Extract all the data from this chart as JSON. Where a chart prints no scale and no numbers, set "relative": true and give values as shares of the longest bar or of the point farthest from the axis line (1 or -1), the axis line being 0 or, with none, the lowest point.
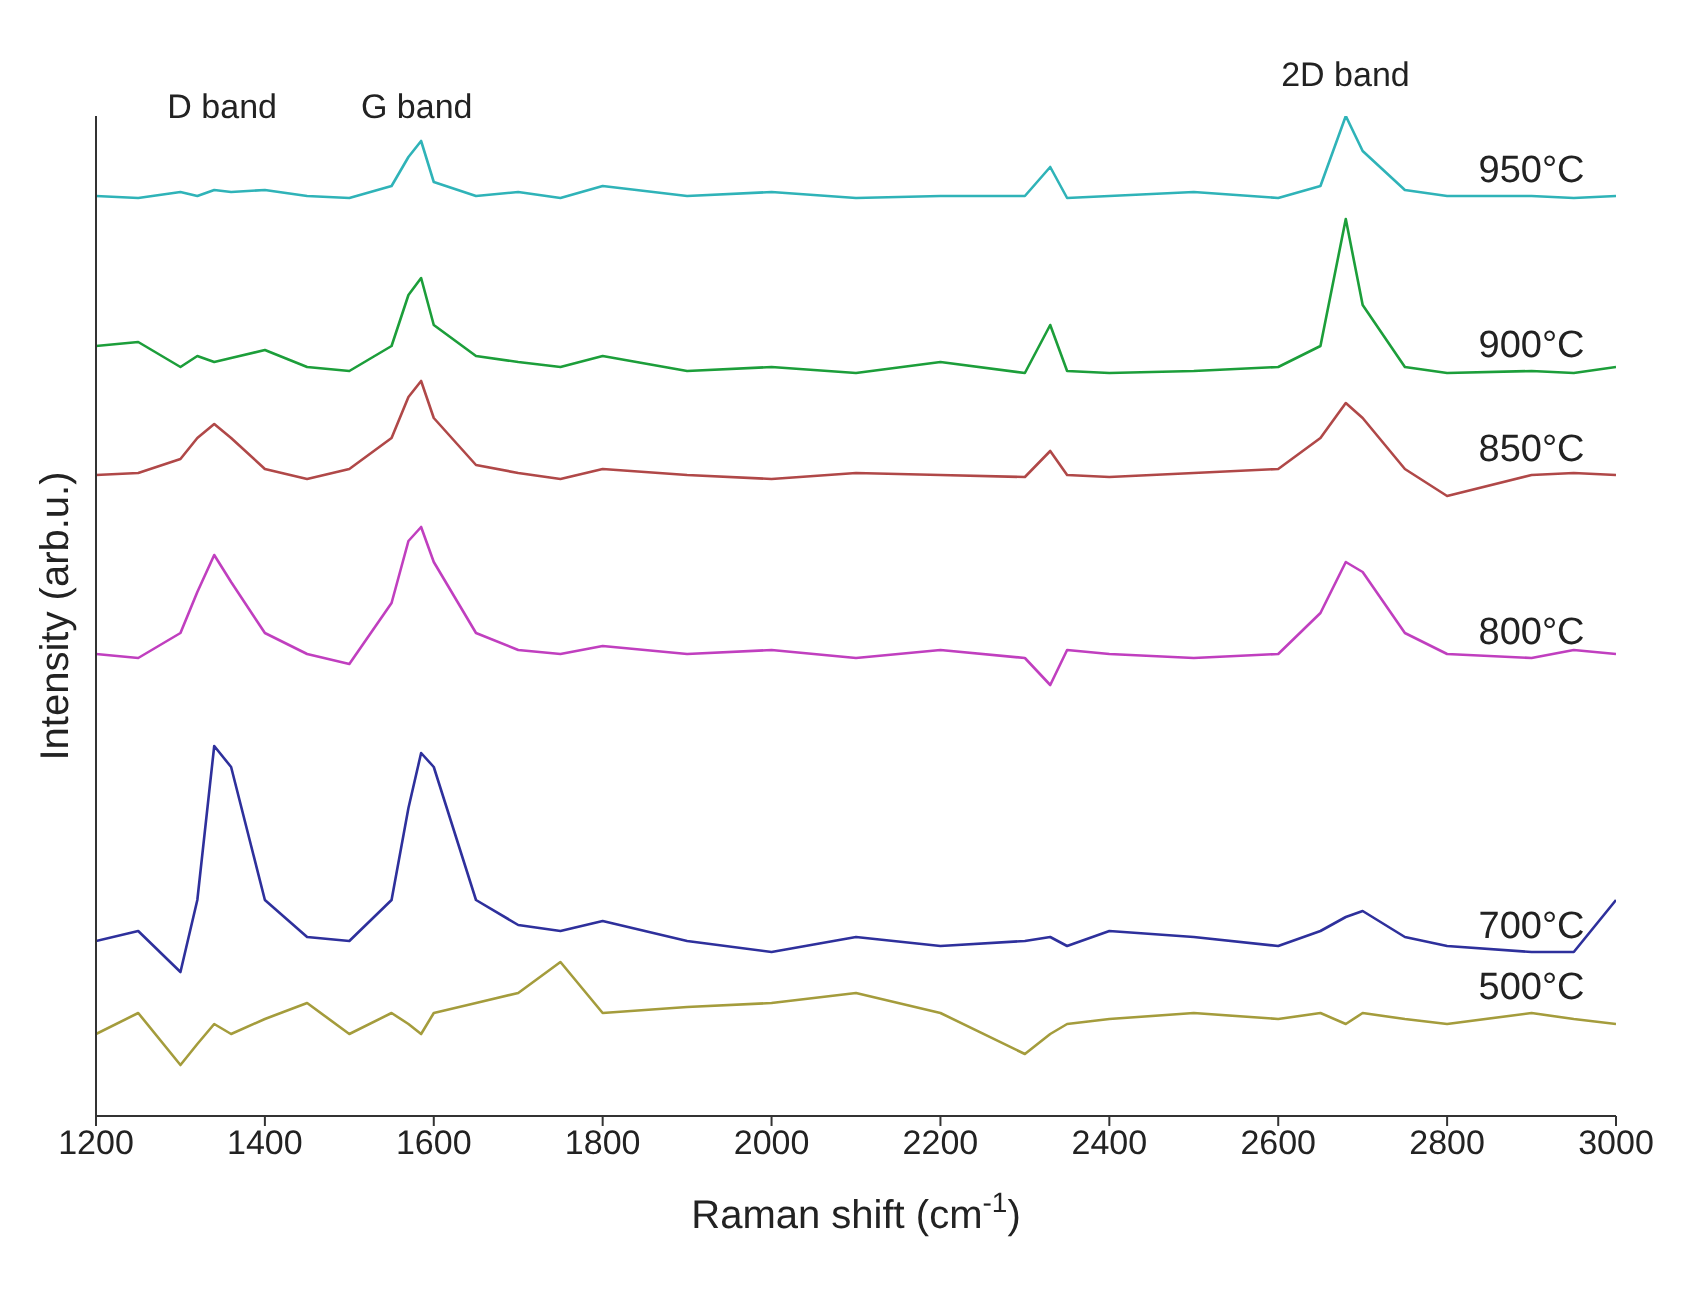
{
  "chart_data": {
    "type": "line",
    "relative": true,
    "xlabel": "Raman shift (cm$^{-1}$)",
    "ylabel": "Intensity (arb.u.)",
    "xlim": [
      1200,
      3000
    ],
    "xticks": [
      1200,
      1400,
      1600,
      1800,
      2000,
      2200,
      2400,
      2600,
      2800,
      3000
    ],
    "grid": false,
    "legend": false,
    "marker": "none",
    "line_style": "solid",
    "x": [
      1200,
      1250,
      1300,
      1320,
      1340,
      1360,
      1400,
      1450,
      1500,
      1550,
      1570,
      1585,
      1600,
      1650,
      1700,
      1750,
      1800,
      1900,
      2000,
      2100,
      2200,
      2300,
      2330,
      2350,
      2400,
      2500,
      2600,
      2650,
      2680,
      2700,
      2750,
      2800,
      2900,
      2950,
      3000
    ],
    "annotations": [
      "D band",
      "G band",
      "2D band"
    ],
    "series": [
      {
        "name": "950°C",
        "color": "#2fb3b8",
        "values": [
          0.92,
          0.918,
          0.924,
          0.92,
          0.926,
          0.924,
          0.926,
          0.92,
          0.918,
          0.93,
          0.959,
          0.975,
          0.934,
          0.92,
          0.924,
          0.918,
          0.93,
          0.92,
          0.924,
          0.918,
          0.92,
          0.92,
          0.949,
          0.918,
          0.92,
          0.924,
          0.918,
          0.93,
          1.0,
          0.965,
          0.926,
          0.92,
          0.92,
          0.918,
          0.92
        ]
      },
      {
        "name": "900°C",
        "color": "#1c9e3a",
        "values": [
          0.77,
          0.774,
          0.749,
          0.76,
          0.754,
          0.758,
          0.766,
          0.749,
          0.745,
          0.77,
          0.821,
          0.838,
          0.791,
          0.76,
          0.754,
          0.749,
          0.76,
          0.745,
          0.749,
          0.743,
          0.754,
          0.743,
          0.791,
          0.745,
          0.743,
          0.745,
          0.749,
          0.77,
          0.897,
          0.811,
          0.749,
          0.743,
          0.745,
          0.743,
          0.749
        ]
      },
      {
        "name": "850°C",
        "color": "#b04848",
        "values": [
          0.641,
          0.643,
          0.657,
          0.678,
          0.692,
          0.678,
          0.647,
          0.637,
          0.647,
          0.678,
          0.719,
          0.735,
          0.698,
          0.651,
          0.643,
          0.637,
          0.647,
          0.641,
          0.637,
          0.643,
          0.641,
          0.639,
          0.665,
          0.641,
          0.639,
          0.643,
          0.647,
          0.678,
          0.713,
          0.698,
          0.647,
          0.62,
          0.641,
          0.643,
          0.641
        ]
      },
      {
        "name": "800°C",
        "color": "#c03fbf",
        "values": [
          0.462,
          0.458,
          0.483,
          0.524,
          0.561,
          0.534,
          0.483,
          0.462,
          0.452,
          0.513,
          0.575,
          0.589,
          0.554,
          0.483,
          0.466,
          0.462,
          0.47,
          0.462,
          0.466,
          0.458,
          0.466,
          0.458,
          0.431,
          0.466,
          0.462,
          0.458,
          0.462,
          0.503,
          0.554,
          0.544,
          0.483,
          0.462,
          0.458,
          0.466,
          0.462
        ]
      },
      {
        "name": "700°C",
        "color": "#2e309c",
        "values": [
          0.175,
          0.185,
          0.144,
          0.216,
          0.37,
          0.349,
          0.216,
          0.179,
          0.175,
          0.216,
          0.308,
          0.363,
          0.349,
          0.216,
          0.191,
          0.185,
          0.195,
          0.175,
          0.164,
          0.179,
          0.17,
          0.175,
          0.179,
          0.17,
          0.185,
          0.179,
          0.17,
          0.185,
          0.199,
          0.205,
          0.179,
          0.17,
          0.164,
          0.164,
          0.216
        ]
      },
      {
        "name": "500°C",
        "color": "#a49c3c",
        "values": [
          0.082,
          0.103,
          0.051,
          0.072,
          0.092,
          0.082,
          0.097,
          0.113,
          0.082,
          0.103,
          0.092,
          0.082,
          0.103,
          0.113,
          0.123,
          0.154,
          0.103,
          0.109,
          0.113,
          0.123,
          0.103,
          0.062,
          0.082,
          0.092,
          0.097,
          0.103,
          0.097,
          0.103,
          0.092,
          0.103,
          0.097,
          0.092,
          0.103,
          0.097,
          0.092
        ]
      }
    ]
  }
}
